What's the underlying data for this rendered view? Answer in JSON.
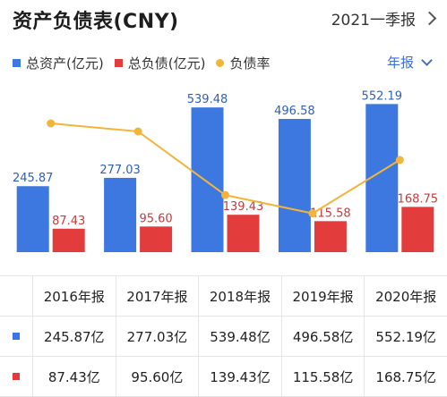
{
  "header": {
    "title": "资产负债表(CNY)",
    "period": "2021一季报"
  },
  "legend": [
    {
      "label": "总资产(亿元)",
      "color": "#3d78e0",
      "shape": "square"
    },
    {
      "label": "总负债(亿元)",
      "color": "#e23c3c",
      "shape": "square"
    },
    {
      "label": "负债率",
      "color": "#f2b53a",
      "shape": "circle"
    }
  ],
  "frequency": "年报",
  "chart_data": {
    "type": "bar",
    "categories": [
      "2016年报",
      "2017年报",
      "2018年报",
      "2019年报",
      "2020年报"
    ],
    "series": [
      {
        "name": "总资产(亿元)",
        "values": [
          245.87,
          277.03,
          539.48,
          496.58,
          552.19
        ],
        "color": "#3d78e0"
      },
      {
        "name": "总负债(亿元)",
        "values": [
          87.43,
          95.6,
          139.43,
          115.58,
          168.75
        ],
        "color": "#e23c3c"
      }
    ],
    "bar_labels": {
      "总资产(亿元)": [
        "245.87",
        "277.03",
        "539.48",
        "496.58",
        "552.19"
      ],
      "总负债(亿元)": [
        "87.43",
        "95.60",
        "139.43",
        "115.58",
        "168.75"
      ]
    },
    "line_series": {
      "name": "负债率",
      "values": [
        35.6,
        34.5,
        25.8,
        23.3,
        30.6
      ],
      "color": "#f2b53a"
    },
    "ylim": [
      0,
      600
    ],
    "line_ylim": [
      18,
      40
    ],
    "grid": false,
    "legend_position": "top-left"
  },
  "table": {
    "headers": [
      "2016年报",
      "2017年报",
      "2018年报",
      "2019年报",
      "2020年报"
    ],
    "rows": [
      {
        "color": "#3d78e0",
        "values": [
          "245.87亿",
          "277.03亿",
          "539.48亿",
          "496.58亿",
          "552.19亿"
        ]
      },
      {
        "color": "#e23c3c",
        "values": [
          "87.43亿",
          "95.60亿",
          "139.43亿",
          "115.58亿",
          "168.75亿"
        ]
      }
    ]
  }
}
